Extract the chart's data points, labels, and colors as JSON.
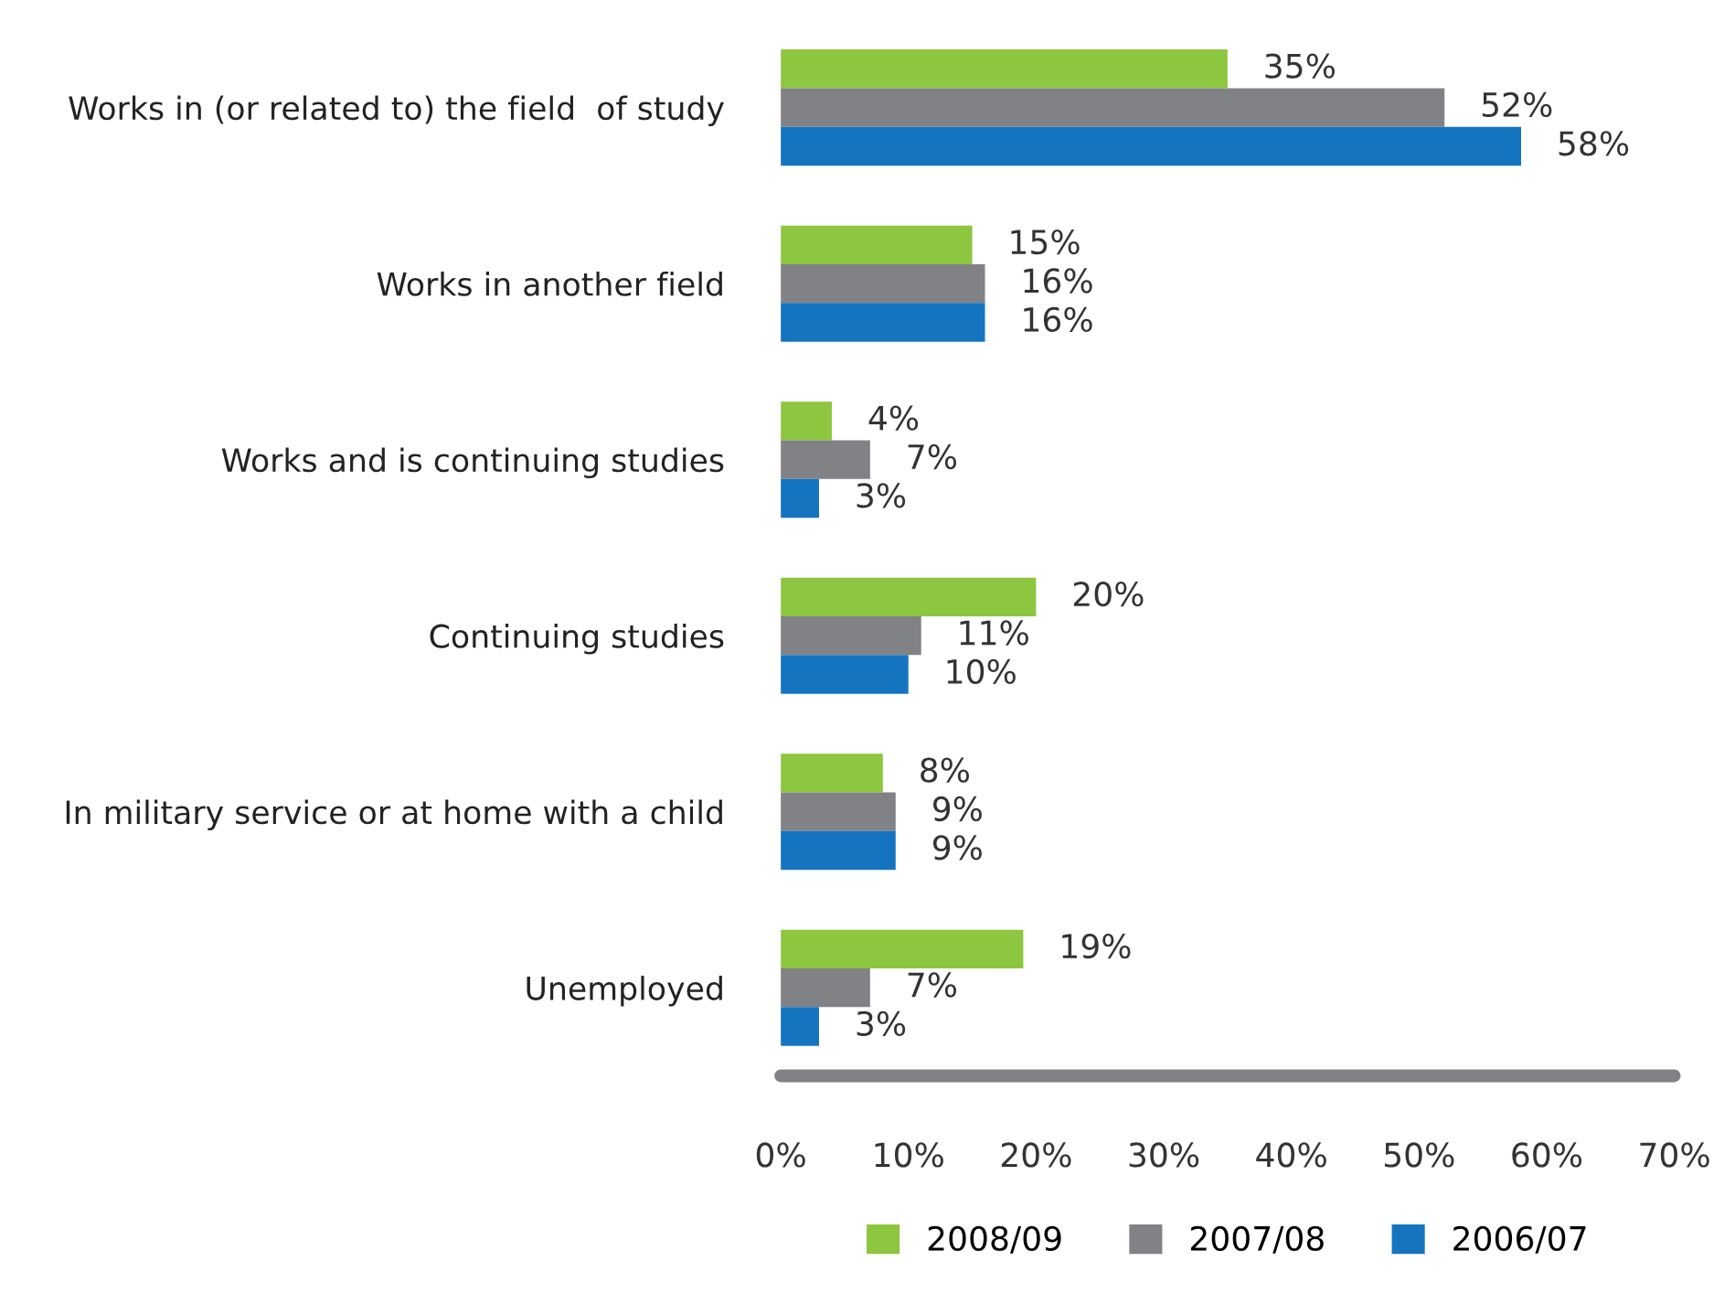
{
  "chart_data": {
    "type": "bar",
    "orientation": "horizontal",
    "categories": [
      "Works in (or related to) the field  of study",
      "Works in another field",
      "Works and is continuing studies",
      "Continuing studies",
      "In military service or at home with a child",
      "Unemployed"
    ],
    "series": [
      {
        "name": "2008/09",
        "color": "#8dc63f",
        "values": [
          35,
          15,
          4,
          20,
          8,
          19
        ],
        "value_labels": [
          "35%",
          "15%",
          "4%",
          "20%",
          "8%",
          "19%"
        ]
      },
      {
        "name": "2007/08",
        "color": "#808285",
        "values": [
          52,
          16,
          7,
          11,
          9,
          7
        ],
        "value_labels": [
          "52%",
          "16%",
          "7%",
          "11%",
          "9%",
          "7%"
        ]
      },
      {
        "name": "2006/07",
        "color": "#1574c0",
        "values": [
          58,
          16,
          3,
          10,
          9,
          3
        ],
        "value_labels": [
          "58%",
          "16%",
          "3%",
          "10%",
          "9%",
          "3%"
        ]
      }
    ],
    "xlim": [
      0,
      70
    ],
    "xticks": [
      {
        "value": 0,
        "label": "0%"
      },
      {
        "value": 10,
        "label": "10%"
      },
      {
        "value": 20,
        "label": "20%"
      },
      {
        "value": 30,
        "label": "30%"
      },
      {
        "value": 40,
        "label": "40%"
      },
      {
        "value": 50,
        "label": "50%"
      },
      {
        "value": 60,
        "label": "60%"
      },
      {
        "value": 70,
        "label": "70%"
      }
    ],
    "grid": false,
    "legend": "bottom"
  }
}
